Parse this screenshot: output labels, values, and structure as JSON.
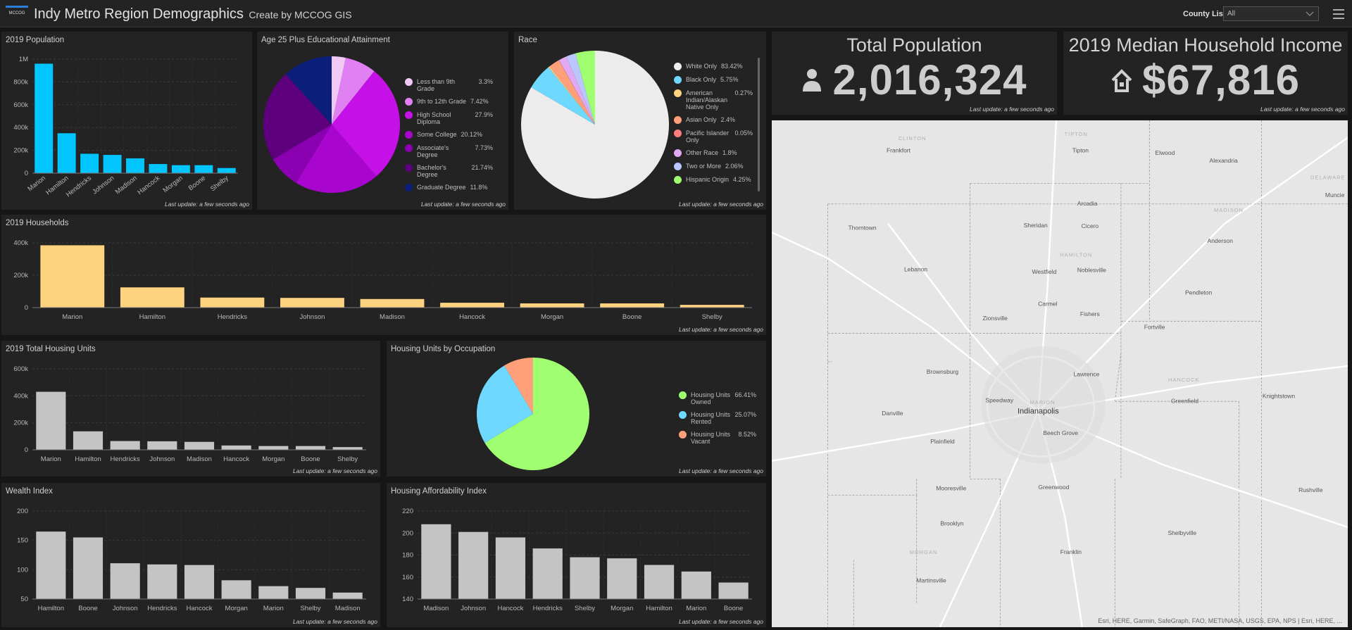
{
  "header": {
    "logo": "MCCOG",
    "title": "Indy Metro Region Demographics",
    "subtitle": "Create by MCCOG GIS",
    "filter_label": "County List",
    "filter_value": "All"
  },
  "last_update": "Last update: a few seconds ago",
  "chart_data": [
    {
      "type": "bar",
      "title": "2019 Population",
      "color": "#00c5ff",
      "grid": true,
      "categories": [
        "Marion",
        "Hamilton",
        "Hendricks",
        "Johnson",
        "Madison",
        "Hancock",
        "Morgan",
        "Boone",
        "Shelby"
      ],
      "values": [
        960000,
        350000,
        170000,
        160000,
        130000,
        80000,
        70000,
        70000,
        45000
      ],
      "ylim": [
        0,
        1000000
      ],
      "yticks": [
        0,
        {
          "value": 200000,
          "label": "200k"
        },
        {
          "value": 400000,
          "label": "400k"
        },
        {
          "value": 600000,
          "label": "600k"
        },
        {
          "value": 800000,
          "label": "800k"
        },
        {
          "value": 1000000,
          "label": "1M"
        }
      ]
    },
    {
      "type": "pie",
      "title": "Age 25 Plus Educational Attainment",
      "categories": [
        "Less than 9th Grade",
        "9th to 12th Grade",
        "High School Diploma",
        "Some College",
        "Associate's Degree",
        "Bachelor's Degree",
        "Graduate Degree"
      ],
      "values": [
        3.3,
        7.42,
        27.9,
        20.12,
        7.73,
        21.74,
        11.8
      ],
      "value_labels": [
        "3.3%",
        "7.42%",
        "27.9%",
        "20.12%",
        "7.73%",
        "21.74%",
        "11.8%"
      ],
      "colors": [
        "#f2c9f5",
        "#e080f2",
        "#c610e8",
        "#a806cf",
        "#8a00b0",
        "#5e007e",
        "#0b1f7a"
      ]
    },
    {
      "type": "pie",
      "title": "Race",
      "categories": [
        "White Only",
        "Black Only",
        "American Indian/Alaskan Native Only",
        "Asian Only",
        "Pacific Islander Only",
        "Other Race",
        "Two or More",
        "Hispanic Origin"
      ],
      "values": [
        83.42,
        5.75,
        0.27,
        2.4,
        0.05,
        1.8,
        2.06,
        4.25
      ],
      "value_labels": [
        "83.42%",
        "5.75%",
        "0.27%",
        "2.4%",
        "0.05%",
        "1.8%",
        "2.06%",
        "4.25%"
      ],
      "colors": [
        "#ececec",
        "#6fd8ff",
        "#ffd27f",
        "#ffa07a",
        "#ff7f7f",
        "#e2a9f3",
        "#b9c6ff",
        "#a0ff70"
      ]
    },
    {
      "type": "bar",
      "title": "2019 Households",
      "color": "#ffd280",
      "grid": true,
      "categories": [
        "Marion",
        "Hamilton",
        "Hendricks",
        "Johnson",
        "Madison",
        "Hancock",
        "Morgan",
        "Boone",
        "Shelby"
      ],
      "values": [
        385000,
        125000,
        62000,
        60000,
        53000,
        30000,
        26000,
        26000,
        17000
      ],
      "ylim": [
        0,
        400000
      ],
      "yticks": [
        0,
        {
          "value": 200000,
          "label": "200k"
        },
        {
          "value": 400000,
          "label": "400k"
        }
      ]
    },
    {
      "type": "bar",
      "title": "2019 Total Housing Units",
      "color": "#c4c4c4",
      "grid": true,
      "categories": [
        "Marion",
        "Hamilton",
        "Hendricks",
        "Johnson",
        "Madison",
        "Hancock",
        "Morgan",
        "Boone",
        "Shelby"
      ],
      "values": [
        430000,
        137000,
        65000,
        63000,
        59000,
        32000,
        28000,
        28000,
        20000
      ],
      "ylim": [
        0,
        600000
      ],
      "yticks": [
        0,
        {
          "value": 200000,
          "label": "200k"
        },
        {
          "value": 400000,
          "label": "400k"
        },
        {
          "value": 600000,
          "label": "600k"
        }
      ]
    },
    {
      "type": "pie",
      "title": "Housing Units by Occupation",
      "categories": [
        "Housing Units Owned",
        "Housing Units Rented",
        "Housing Units Vacant"
      ],
      "values": [
        66.41,
        25.07,
        8.52
      ],
      "value_labels": [
        "66.41%",
        "25.07%",
        "8.52%"
      ],
      "colors": [
        "#a0ff70",
        "#6fd8ff",
        "#ffa07a"
      ]
    },
    {
      "type": "bar",
      "title": "Wealth Index",
      "color": "#c4c4c4",
      "grid": true,
      "categories": [
        "Hamilton",
        "Boone",
        "Johnson",
        "Hendricks",
        "Hancock",
        "Morgan",
        "Marion",
        "Shelby",
        "Madison"
      ],
      "values": [
        165,
        155,
        111,
        109,
        108,
        82,
        72,
        69,
        61
      ],
      "ylim": [
        50,
        200
      ],
      "yticks": [
        50,
        100,
        150,
        200
      ]
    },
    {
      "type": "bar",
      "title": "Housing Affordability Index",
      "color": "#c4c4c4",
      "grid": true,
      "categories": [
        "Madison",
        "Johnson",
        "Hancock",
        "Hendricks",
        "Shelby",
        "Morgan",
        "Hamilton",
        "Marion",
        "Boone"
      ],
      "values": [
        208,
        201,
        196,
        186,
        178,
        177,
        171,
        165,
        155
      ],
      "ylim": [
        140,
        220
      ],
      "yticks": [
        140,
        160,
        180,
        200,
        220
      ]
    }
  ],
  "indicators": [
    {
      "title": "Total Population",
      "value": 2016324,
      "label": "2,016,324"
    },
    {
      "title": "2019 Median Household Income",
      "value": 67816,
      "label": "$67,816"
    }
  ],
  "map": {
    "county_labels": [
      "CLINTON",
      "TIPTON",
      "DELAWARE",
      "MADISON",
      "HAMILTON",
      "HANCOCK",
      "MARION",
      "MORGAN"
    ],
    "city_labels": [
      "Frankfort",
      "Tipton",
      "Elwood",
      "Alexandria",
      "Muncie",
      "Thorntown",
      "Sheridan",
      "Arcadia",
      "Cicero",
      "Anderson",
      "Lebanon",
      "Westfield",
      "Noblesville",
      "Pendleton",
      "Carmel",
      "Zionsville",
      "Fishers",
      "Fortville",
      "Brownsburg",
      "Lawrence",
      "Speedway",
      "Danville",
      "Greenfield",
      "Knightstown",
      "Beech Grove",
      "Plainfield",
      "Mooresville",
      "Greenwood",
      "Rushville",
      "Brooklyn",
      "Shelbyville",
      "Franklin",
      "Martinsville"
    ],
    "capital": "Indianapolis",
    "attribution": "Esri, HERE, Garmin, SafeGraph, FAO, METI/NASA, USGS, EPA, NPS | Esri, HERE, ..."
  }
}
